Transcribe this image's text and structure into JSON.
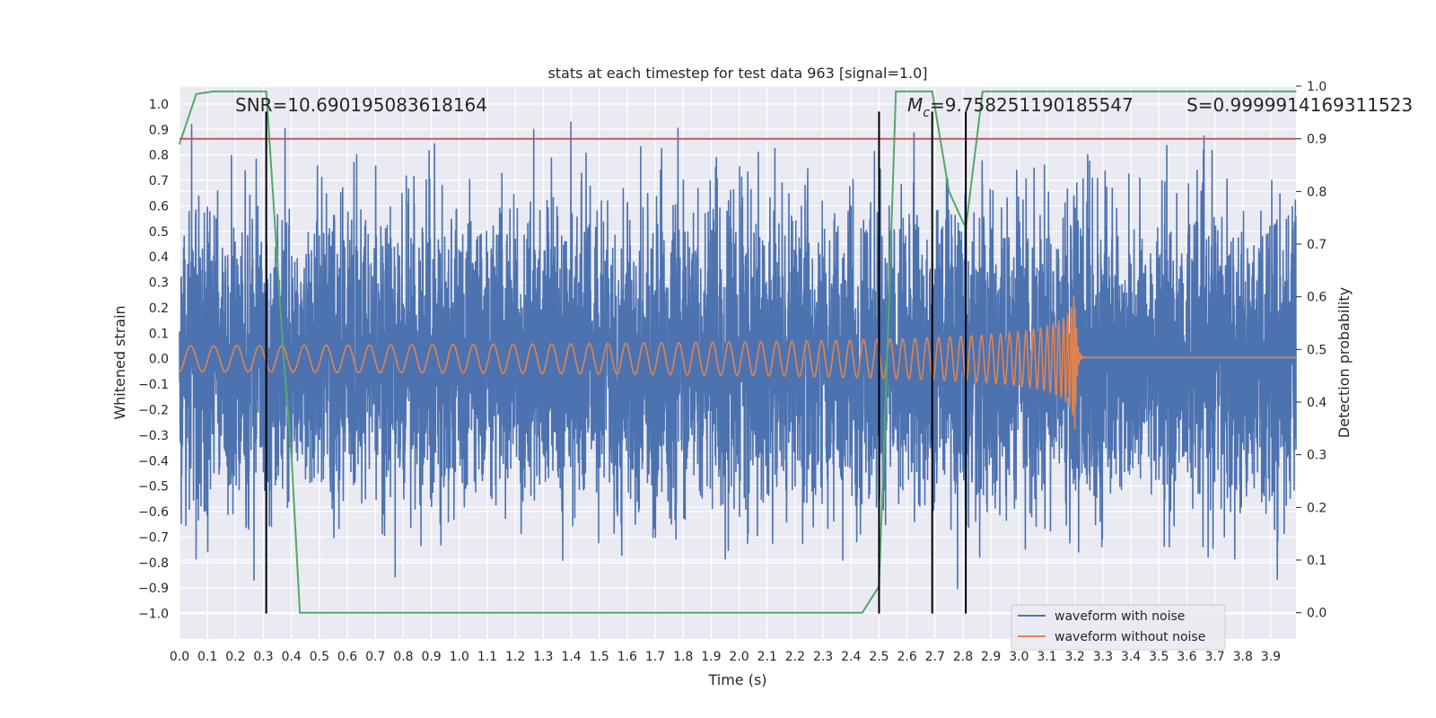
{
  "chart_data": {
    "type": "line",
    "title": "stats at each timestep for test data 963 [signal=1.0]",
    "xlabel": "Time (s)",
    "ylabel": "Whitened strain",
    "y2label": "Detection probability",
    "xlim": [
      0.0,
      3.99
    ],
    "ylim": [
      -1.1,
      1.07
    ],
    "y2lim": [
      -0.05,
      1.0
    ],
    "xticks": [
      0.0,
      0.1,
      0.2,
      0.3,
      0.4,
      0.5,
      0.6,
      0.7,
      0.8,
      0.9,
      1.0,
      1.1,
      1.2,
      1.3,
      1.4,
      1.5,
      1.6,
      1.7,
      1.8,
      1.9,
      2.0,
      2.1,
      2.2,
      2.3,
      2.4,
      2.5,
      2.6,
      2.7,
      2.8,
      2.9,
      3.0,
      3.1,
      3.2,
      3.3,
      3.4,
      3.5,
      3.6,
      3.7,
      3.8,
      3.9
    ],
    "yticks": [
      1.0,
      0.9,
      0.8,
      0.7,
      0.6,
      0.5,
      0.4,
      0.3,
      0.2,
      0.1,
      0.0,
      -0.1,
      -0.2,
      -0.3,
      -0.4,
      -0.5,
      -0.6,
      -0.7,
      -0.8,
      -0.9,
      -1.0
    ],
    "y2ticks": [
      0.0,
      0.1,
      0.2,
      0.3,
      0.4,
      0.5,
      0.6,
      0.7,
      0.8,
      0.9,
      1.0
    ],
    "grid": true,
    "legend_position": "lower-right",
    "annotations": {
      "snr": "SNR=10.690195083618164",
      "mc": "=9.758251190185547",
      "mc_symbol": "M",
      "mc_sub": "c",
      "s": "S=0.9999914169311523"
    },
    "threshold": {
      "value": 0.9,
      "axis": "right",
      "color": "#c44e52"
    },
    "vertical_markers": [
      0.31,
      2.5,
      2.69,
      2.81
    ],
    "series": [
      {
        "name": "waveform with noise",
        "color": "#4c72b0",
        "axis": "left",
        "kind": "noise",
        "approx_std": 0.28,
        "approx_peak": 0.87
      },
      {
        "name": "waveform without noise",
        "color": "#dd8452",
        "axis": "left",
        "kind": "chirp",
        "merger_time": 3.2,
        "peak_amplitude": 0.29,
        "post_merger_amplitude": 0.005
      },
      {
        "name": "",
        "color": "#55a868",
        "axis": "right",
        "kind": "probability",
        "x": [
          0.0,
          0.06,
          0.12,
          0.31,
          0.37,
          0.4,
          0.43,
          2.44,
          2.5,
          2.53,
          2.56,
          2.62,
          2.69,
          2.75,
          2.81,
          2.87,
          3.99
        ],
        "values": [
          0.89,
          0.985,
          0.99,
          0.99,
          0.5,
          0.3,
          0.0,
          0.0,
          0.05,
          0.5,
          0.99,
          0.99,
          0.99,
          0.8,
          0.73,
          0.99,
          0.99
        ]
      }
    ]
  }
}
